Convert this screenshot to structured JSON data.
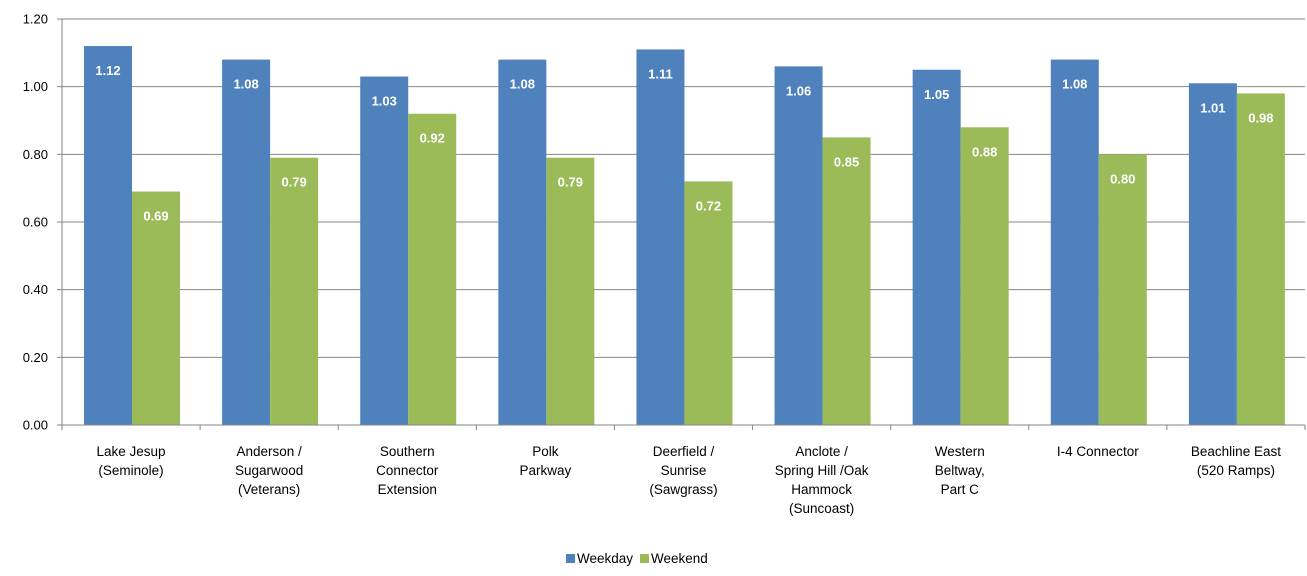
{
  "chart_data": {
    "type": "bar",
    "categories": [
      [
        "Lake Jesup",
        "(Seminole)"
      ],
      [
        "Anderson /",
        "Sugarwood",
        "(Veterans)"
      ],
      [
        "Southern",
        "Connector",
        "Extension"
      ],
      [
        "Polk",
        "Parkway"
      ],
      [
        "Deerfield /",
        "Sunrise",
        "(Sawgrass)"
      ],
      [
        "Anclote /",
        "Spring Hill /Oak",
        "Hammock",
        "(Suncoast)"
      ],
      [
        "Western",
        "Beltway,",
        "Part C"
      ],
      [
        "I-4 Connector"
      ],
      [
        "Beachline East",
        "(520 Ramps)"
      ]
    ],
    "series": [
      {
        "name": "Weekday",
        "color": "#4F81BD",
        "values": [
          1.12,
          1.08,
          1.03,
          1.08,
          1.11,
          1.06,
          1.05,
          1.08,
          1.01
        ],
        "labels": [
          "1.12",
          "1.08",
          "1.03",
          "1.08",
          "1.11",
          "1.06",
          "1.05",
          "1.08",
          "1.01"
        ]
      },
      {
        "name": "Weekend",
        "color": "#9BBB59",
        "values": [
          0.69,
          0.79,
          0.92,
          0.79,
          0.72,
          0.85,
          0.88,
          0.8,
          0.98
        ],
        "labels": [
          "0.69",
          "0.79",
          "0.92",
          "0.79",
          "0.72",
          "0.85",
          "0.88",
          "0.80",
          "0.98"
        ]
      }
    ],
    "y_ticks": [
      "0.00",
      "0.20",
      "0.40",
      "0.60",
      "0.80",
      "1.00",
      "1.20"
    ],
    "ylim": [
      0,
      1.2
    ],
    "grid": true,
    "legend_position": "bottom-center",
    "title": "",
    "xlabel": "",
    "ylabel": ""
  }
}
